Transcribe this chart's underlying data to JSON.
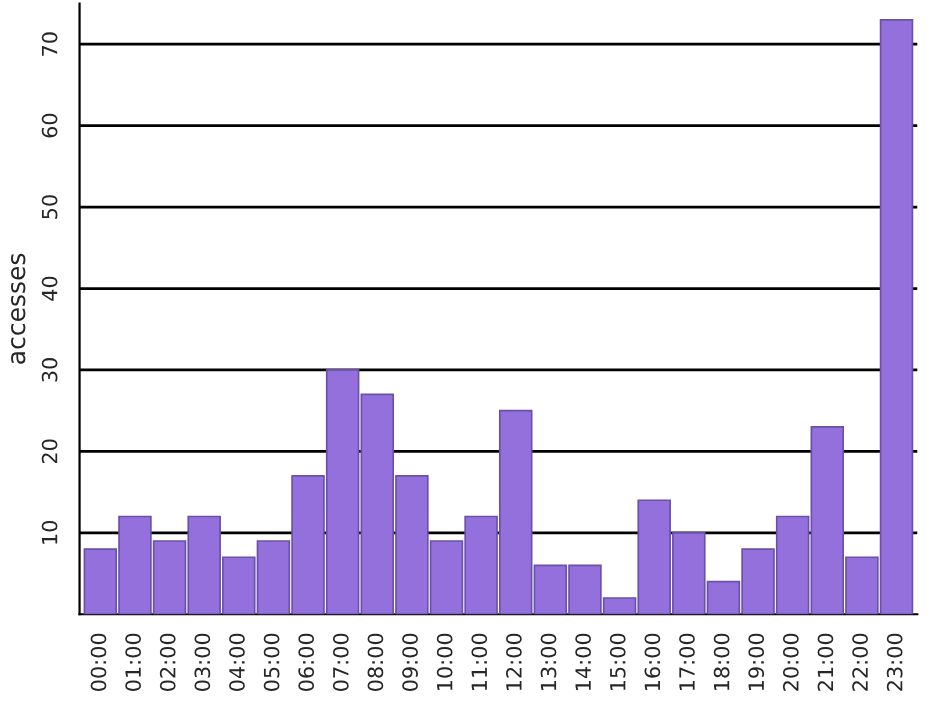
{
  "chart_data": {
    "type": "bar",
    "ylabel": "accesses",
    "categories": [
      "00:00",
      "01:00",
      "02:00",
      "03:00",
      "04:00",
      "05:00",
      "06:00",
      "07:00",
      "08:00",
      "09:00",
      "10:00",
      "11:00",
      "12:00",
      "13:00",
      "14:00",
      "15:00",
      "16:00",
      "17:00",
      "18:00",
      "19:00",
      "20:00",
      "21:00",
      "22:00",
      "23:00"
    ],
    "values": [
      8,
      12,
      9,
      12,
      7,
      9,
      17,
      30,
      27,
      17,
      9,
      12,
      25,
      6,
      6,
      2,
      14,
      10,
      4,
      8,
      12,
      23,
      7,
      73
    ],
    "color": "#9370db",
    "ylim": [
      0,
      75
    ],
    "yticks": [
      10,
      20,
      30,
      40,
      50,
      60,
      70
    ],
    "grid": "y",
    "legend": false
  }
}
